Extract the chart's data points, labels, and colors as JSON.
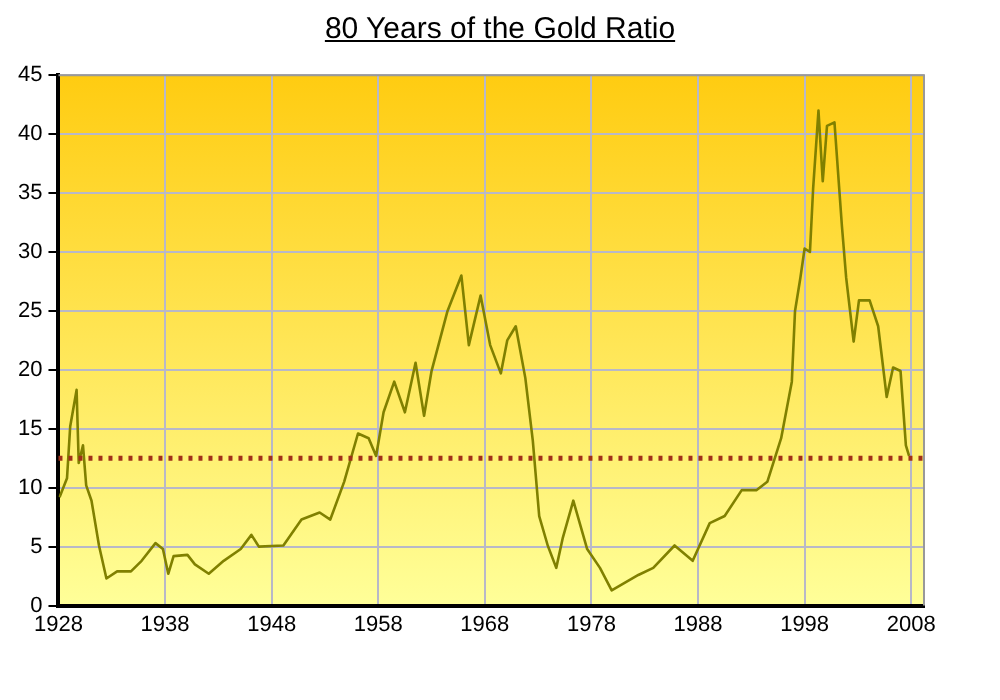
{
  "chart_data": {
    "type": "line",
    "title": "80 Years of the Gold Ratio",
    "x": [
      1928.1,
      1928.8,
      1929.1,
      1929.7,
      1929.9,
      1930.3,
      1930.6,
      1931.1,
      1931.8,
      1932.5,
      1933.5,
      1934.8,
      1935.8,
      1937.1,
      1937.8,
      1938.3,
      1938.8,
      1940.1,
      1940.8,
      1942.1,
      1943.5,
      1945.1,
      1946.1,
      1946.8,
      1949.1,
      1950.8,
      1952.5,
      1953.5,
      1954.8,
      1956.1,
      1957.1,
      1957.8,
      1958.5,
      1959.5,
      1960.5,
      1961.5,
      1962.3,
      1963,
      1964.5,
      1965.8,
      1966.5,
      1967.6,
      1968.5,
      1969.5,
      1970.1,
      1970.9,
      1971.8,
      1972.5,
      1973.1,
      1973.9,
      1974.7,
      1975.3,
      1976.3,
      1977.6,
      1978.8,
      1979.9,
      1982.4,
      1983.8,
      1985.8,
      1987.5,
      1989.1,
      1990.5,
      1992.1,
      1993.5,
      1994.5,
      1995.8,
      1996.8,
      1997.1,
      1997.6,
      1998,
      1998.5,
      1998.8,
      1999.3,
      1999.7,
      2000.1,
      2000.8,
      2001.5,
      2001.9,
      2002.6,
      2003.1,
      2004.1,
      2004.9,
      2005.7,
      2006.3,
      2007,
      2007.5,
      2007.8
    ],
    "series": [
      {
        "color": "#808000",
        "values": [
          9.2,
          10.8,
          15.2,
          18.3,
          12.1,
          13.6,
          10.2,
          8.9,
          5.1,
          2.3,
          2.9,
          2.9,
          3.8,
          5.3,
          4.8,
          2.7,
          4.2,
          4.3,
          3.5,
          2.7,
          3.8,
          4.8,
          6,
          5,
          5.1,
          7.3,
          7.9,
          7.3,
          10.5,
          14.6,
          14.2,
          12.7,
          16.4,
          19,
          16.4,
          20.6,
          16.1,
          19.9,
          25,
          28,
          22.1,
          26.3,
          22.1,
          19.7,
          22.5,
          23.7,
          19.3,
          14,
          7.6,
          5.1,
          3.2,
          5.7,
          8.9,
          4.8,
          3.2,
          1.3,
          2.6,
          3.2,
          5.1,
          3.8,
          7,
          7.6,
          9.8,
          9.8,
          10.5,
          14.2,
          19,
          25,
          27.8,
          30.3,
          30,
          35.4,
          42,
          36,
          40.7,
          41,
          32.2,
          27.8,
          22.4,
          25.9,
          25.9,
          23.7,
          17.7,
          20.2,
          19.9,
          13.6,
          12.7
        ]
      }
    ],
    "xlim": [
      1928,
      2009.2
    ],
    "xticks": [
      1928,
      1938,
      1948,
      1958,
      1968,
      1978,
      1988,
      1998,
      2008
    ],
    "ylim": [
      0,
      45
    ],
    "yticks": [
      0,
      5,
      10,
      15,
      20,
      25,
      30,
      35,
      40,
      45
    ],
    "ref_lines": [
      {
        "axis": "y",
        "value": 12.5,
        "color": "#a0301a",
        "line_style": "dotted"
      }
    ],
    "grid": true,
    "legend": false,
    "marker": "none",
    "line_style": "solid"
  }
}
